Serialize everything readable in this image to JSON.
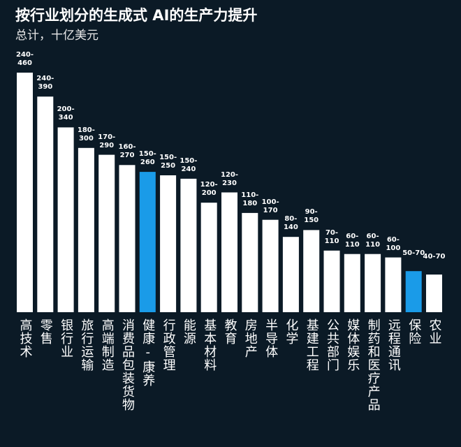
{
  "chart_data": {
    "type": "range-bar",
    "title": "按行业划分的生成式 AI的生产力提升",
    "subtitle": "总计，十亿美元",
    "categories": [
      "高技术",
      "零售",
      "银行业",
      "旅行运输",
      "高端制造",
      "消费品包装货物",
      "健康-康养",
      "行政管理",
      "能源",
      "基本材料",
      "教育",
      "房地产",
      "半导体",
      "化学",
      "基建工程",
      "公共部门",
      "媒体娱乐",
      "制药和医疗产品",
      "远程通讯",
      "保险",
      "农业"
    ],
    "values": [
      {
        "low": 240,
        "high": 460
      },
      {
        "low": 240,
        "high": 390
      },
      {
        "low": 200,
        "high": 340
      },
      {
        "low": 180,
        "high": 300
      },
      {
        "low": 170,
        "high": 290
      },
      {
        "low": 160,
        "high": 270
      },
      {
        "low": 150,
        "high": 260
      },
      {
        "low": 150,
        "high": 250
      },
      {
        "low": 150,
        "high": 240
      },
      {
        "low": 120,
        "high": 200
      },
      {
        "low": 120,
        "high": 230
      },
      {
        "low": 110,
        "high": 180
      },
      {
        "low": 100,
        "high": 170
      },
      {
        "low": 80,
        "high": 140
      },
      {
        "low": 90,
        "high": 150
      },
      {
        "low": 70,
        "high": 110
      },
      {
        "low": 60,
        "high": 110
      },
      {
        "low": 60,
        "high": 110
      },
      {
        "low": 60,
        "high": 100
      },
      {
        "low": 50,
        "high": 70
      },
      {
        "low": 40,
        "high": 70
      }
    ],
    "value_labels": [
      "240-460",
      "240-390",
      "200-340",
      "180-300",
      "170-290",
      "160-270",
      "150-260",
      "150-250",
      "150-240",
      "120-200",
      "120-230",
      "110-180",
      "100-170",
      "80-140",
      "90-150",
      "70-110",
      "60-110",
      "60-110",
      "60-100",
      "50-70",
      "40-70"
    ],
    "colors": [
      "#ffffff",
      "#ffffff",
      "#ffffff",
      "#ffffff",
      "#ffffff",
      "#ffffff",
      "#1a9be8",
      "#ffffff",
      "#ffffff",
      "#ffffff",
      "#ffffff",
      "#ffffff",
      "#ffffff",
      "#ffffff",
      "#ffffff",
      "#ffffff",
      "#ffffff",
      "#ffffff",
      "#ffffff",
      "#1a9be8",
      "#ffffff"
    ]
  }
}
